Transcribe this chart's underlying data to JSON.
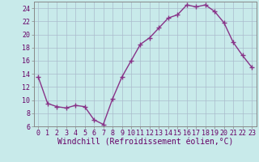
{
  "x": [
    0,
    1,
    2,
    3,
    4,
    5,
    6,
    7,
    8,
    9,
    10,
    11,
    12,
    13,
    14,
    15,
    16,
    17,
    18,
    19,
    20,
    21,
    22,
    23
  ],
  "y": [
    13.5,
    9.5,
    9.0,
    8.8,
    9.2,
    9.0,
    7.0,
    6.3,
    10.2,
    13.5,
    16.0,
    18.5,
    19.5,
    21.0,
    22.5,
    23.0,
    24.5,
    24.2,
    24.5,
    23.5,
    21.8,
    18.8,
    16.8,
    15.0
  ],
  "line_color": "#883388",
  "marker": "+",
  "marker_size": 4,
  "bg_color": "#c8eaea",
  "grid_color": "#aabbcc",
  "xlabel": "Windchill (Refroidissement éolien,°C)",
  "xlabel_fontsize": 7,
  "tick_fontsize": 6,
  "ylim": [
    6,
    25
  ],
  "xlim": [
    -0.5,
    23.5
  ],
  "yticks": [
    6,
    8,
    10,
    12,
    14,
    16,
    18,
    20,
    22,
    24
  ],
  "xticks": [
    0,
    1,
    2,
    3,
    4,
    5,
    6,
    7,
    8,
    9,
    10,
    11,
    12,
    13,
    14,
    15,
    16,
    17,
    18,
    19,
    20,
    21,
    22,
    23
  ]
}
